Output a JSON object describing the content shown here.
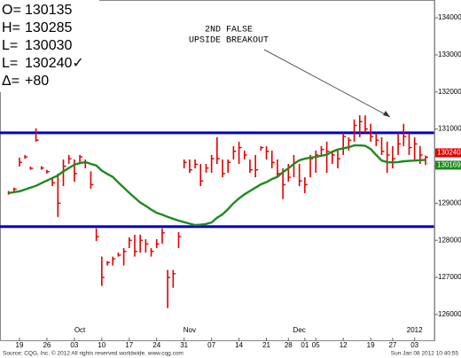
{
  "chart_data": {
    "type": "hlc",
    "stats": [
      [
        "O=",
        "130135"
      ],
      [
        "H=",
        "130285"
      ],
      [
        "L=",
        "130030"
      ],
      [
        "L=",
        "130240✓"
      ],
      [
        "Δ=",
        "+80"
      ]
    ],
    "annotation": [
      "2ND FALSE",
      "UPSIDE BREAKOUT"
    ],
    "source": "Source: CQG, Inc. © 2012 All rights reserved worldwide. www.cqg.com",
    "timestamp": "Sun Jan 08 2012 10:40:55",
    "categories": [
      null,
      null,
      "19",
      null,
      null,
      null,
      null,
      "26",
      null,
      null,
      null,
      null,
      "03",
      null,
      null,
      null,
      null,
      "10",
      null,
      null,
      null,
      null,
      "17",
      null,
      null,
      null,
      null,
      "24",
      null,
      null,
      null,
      null,
      "31",
      null,
      null,
      null,
      null,
      "07",
      null,
      null,
      null,
      null,
      "14",
      null,
      null,
      null,
      null,
      "21",
      null,
      null,
      null,
      "28",
      null,
      null,
      "01",
      null,
      "05",
      null,
      null,
      null,
      null,
      "12",
      null,
      null,
      null,
      null,
      "19",
      null,
      null,
      null,
      "27",
      null,
      null,
      null,
      "03",
      null,
      null
    ],
    "months": [
      null,
      null,
      null,
      null,
      null,
      null,
      null,
      null,
      null,
      null,
      null,
      null,
      null,
      "Oct",
      null,
      null,
      null,
      null,
      null,
      null,
      null,
      null,
      null,
      null,
      null,
      null,
      null,
      null,
      null,
      null,
      null,
      null,
      null,
      "Nov",
      null,
      null,
      null,
      null,
      null,
      null,
      null,
      null,
      null,
      null,
      null,
      null,
      null,
      null,
      null,
      null,
      null,
      null,
      null,
      "Dec",
      null,
      null,
      null,
      null,
      null,
      null,
      null,
      null,
      null,
      null,
      null,
      null,
      null,
      null,
      null,
      null,
      null,
      null,
      null,
      null,
      "2012",
      null,
      null
    ],
    "bars": {
      "color": "#e00000",
      "high": [
        129330,
        129420,
        130230,
        130300,
        129990,
        131020,
        130000,
        129900,
        129700,
        129800,
        130180,
        130300,
        130180,
        130300,
        130180,
        129860,
        128320,
        127560,
        127440,
        127560,
        127670,
        127790,
        128080,
        128150,
        128150,
        128030,
        127790,
        128030,
        128320,
        127200,
        127200,
        128220,
        130180,
        130180,
        130180,
        130060,
        130060,
        130300,
        130780,
        130180,
        130180,
        130540,
        130660,
        130420,
        130180,
        130300,
        130540,
        130540,
        130420,
        130180,
        129940,
        130060,
        130300,
        130060,
        129700,
        130300,
        130420,
        130540,
        130660,
        130420,
        130420,
        130900,
        130780,
        131260,
        131370,
        131370,
        131140,
        130900,
        130780,
        130660,
        130540,
        130900,
        131140,
        130900,
        130780,
        130540,
        130285
      ],
      "low": [
        129230,
        129300,
        129990,
        130200,
        129900,
        130660,
        129900,
        129800,
        129460,
        128630,
        129460,
        130060,
        129580,
        130100,
        129940,
        129390,
        127980,
        126770,
        127320,
        127320,
        127560,
        127320,
        127790,
        127560,
        127670,
        127670,
        127560,
        127790,
        127910,
        126170,
        126720,
        127790,
        129940,
        129820,
        129940,
        129460,
        129820,
        129820,
        130060,
        129700,
        129820,
        130180,
        130060,
        130180,
        129820,
        129700,
        130420,
        130180,
        129940,
        129700,
        129110,
        129580,
        129700,
        129460,
        129270,
        129700,
        129820,
        130300,
        129820,
        130060,
        129940,
        130300,
        130420,
        130660,
        130780,
        130900,
        130660,
        130540,
        130300,
        129820,
        129940,
        130300,
        130540,
        130300,
        130180,
        130060,
        130030
      ],
      "close": [
        129280,
        129380,
        130100,
        130250,
        129940,
        130700,
        129950,
        129850,
        129550,
        129000,
        130000,
        130200,
        129800,
        130250,
        130100,
        129500,
        128100,
        127000,
        127400,
        127500,
        127600,
        127700,
        128000,
        127700,
        128000,
        127900,
        127700,
        127900,
        128200,
        127000,
        127100,
        128100,
        130100,
        129900,
        130050,
        129600,
        129950,
        130200,
        130200,
        129800,
        130100,
        130400,
        130500,
        130300,
        129900,
        129900,
        130500,
        130400,
        130100,
        129800,
        129500,
        129700,
        130100,
        129600,
        129500,
        130200,
        130300,
        130450,
        130400,
        130300,
        130200,
        130800,
        130700,
        131100,
        131200,
        131000,
        130800,
        130700,
        130400,
        130300,
        130200,
        130600,
        130800,
        130500,
        130600,
        130300,
        130240
      ]
    },
    "ma": {
      "color": "#1f8a1f",
      "values": [
        129270,
        129300,
        129320,
        129370,
        129420,
        129470,
        129540,
        129610,
        129680,
        129750,
        129860,
        129950,
        130040,
        130080,
        130110,
        130060,
        130020,
        129880,
        129790,
        129710,
        129560,
        129420,
        129280,
        129150,
        129020,
        128930,
        128830,
        128740,
        128690,
        128630,
        128580,
        128530,
        128490,
        128450,
        128410,
        128420,
        128440,
        128480,
        128610,
        128700,
        128840,
        129000,
        129130,
        129240,
        129330,
        129420,
        129510,
        129570,
        129650,
        129710,
        129840,
        129940,
        130060,
        130160,
        130200,
        130230,
        130250,
        130280,
        130310,
        130390,
        130450,
        130480,
        130510,
        130560,
        130560,
        130550,
        130460,
        130300,
        130150,
        130110,
        130100,
        130110,
        130130,
        130140,
        130150,
        130160,
        130169
      ]
    },
    "hlines": {
      "color": "#0000cc",
      "values": [
        130900,
        128370
      ]
    },
    "ylim": [
      125400,
      134480
    ],
    "yticks": [
      126000,
      127000,
      128000,
      129000,
      130000,
      131000,
      132000,
      133000,
      134000
    ]
  }
}
